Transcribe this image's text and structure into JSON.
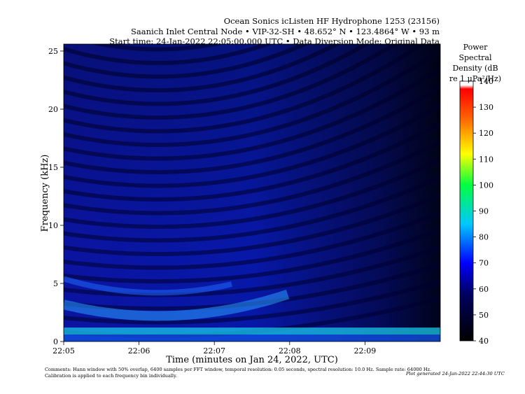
{
  "header": {
    "line1": "Ocean Sonics icListen HF Hydrophone 1253 (23156)",
    "line2": "Saanich Inlet Central Node • VIP-32-SH • 48.652° N • 123.4864° W • 93 m",
    "line3": "Start time: 24-Jan-2022 22:05:00.000 UTC • Data Diversion Mode: Original Data"
  },
  "colorbar": {
    "title_lines": [
      "Power",
      "Spectral",
      "Density (dB",
      "re 1 μPa²/Hz)"
    ],
    "ticks": [
      40,
      50,
      60,
      70,
      80,
      90,
      100,
      110,
      120,
      130,
      140
    ]
  },
  "footer": {
    "comments_line1": "Comments: Hann window with 50% overlap, 6400 samples per FFT window, temporal resolution: 0.05 seconds, spectral resolution: 10.0 Hz. Sample rate: 64000 Hz.",
    "comments_line2": "Calibration is applied to each frequency bin individually.",
    "generated": "Plot generated 24-Jan-2022 22:44:30 UTC"
  },
  "chart_data": {
    "type": "heatmap",
    "xlabel": "Time (minutes on Jan 24, 2022, UTC)",
    "ylabel": "Frequency (kHz)",
    "x_ticks": [
      "22:05",
      "22:06",
      "22:07",
      "22:08",
      "22:09"
    ],
    "y_ticks": [
      0,
      5,
      10,
      15,
      20,
      25
    ],
    "xlim": [
      "22:05",
      "22:10"
    ],
    "ylim": [
      0,
      25.6
    ],
    "zlim": [
      40,
      140
    ],
    "colormap": [
      "#000000",
      "#0000ff",
      "#00ffff",
      "#00ff00",
      "#ffff00",
      "#ff0000",
      "#ffffff"
    ],
    "features": {
      "low_freq_band_khz": [
        0.6,
        1.2
      ],
      "broadband_level_db": 65,
      "background_level_db": 55,
      "interference_fringes": "Lloyd-mirror arcs from passing vessel",
      "closest_approach_time": "22:06:20"
    }
  }
}
